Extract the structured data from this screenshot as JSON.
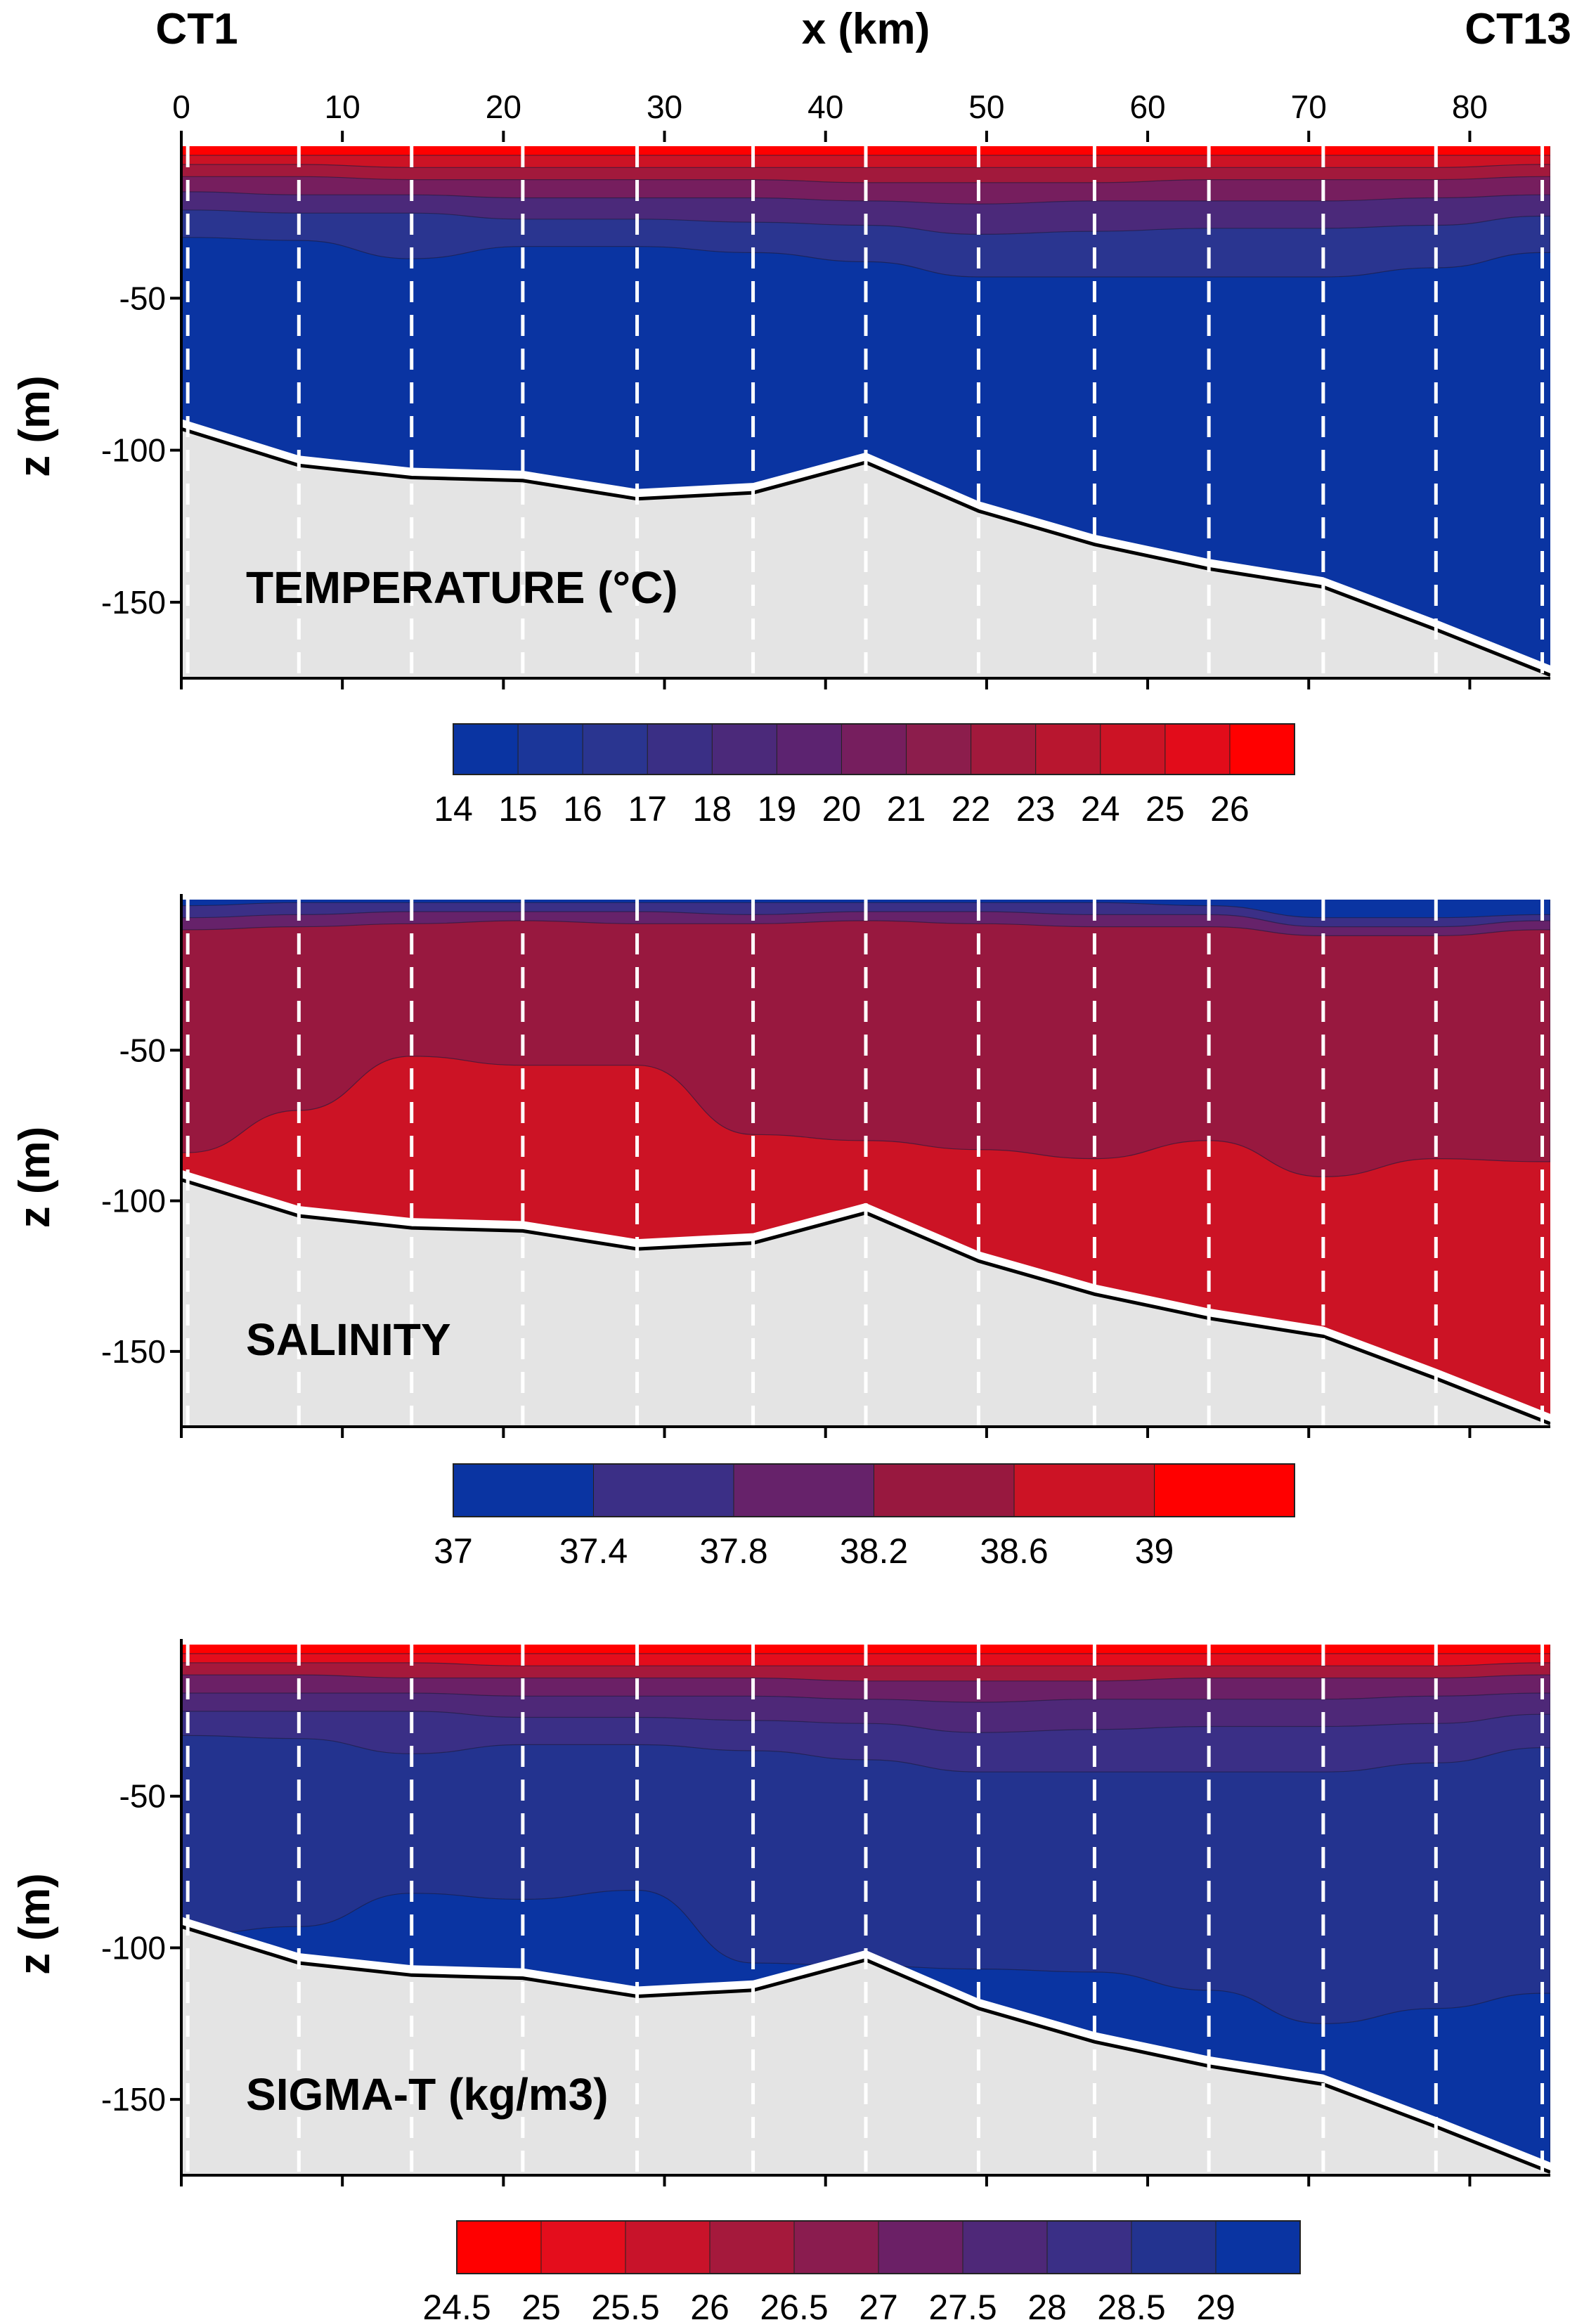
{
  "header": {
    "left_station": "CT1",
    "right_station": "CT13",
    "x_axis_label": "x (km)"
  },
  "colors": {
    "seabed": "#e4e4e4",
    "station_line": "#ffffff",
    "bottom_line": "#000000"
  },
  "chart_data": [
    {
      "type": "heatmap",
      "title": "TEMPERATURE (°C)",
      "xlabel": "x (km)",
      "ylabel": "z (m)",
      "xlim": [
        0,
        85
      ],
      "ylim": [
        -175,
        0
      ],
      "x_ticks": [
        "0",
        "10",
        "20",
        "30",
        "40",
        "50",
        "60",
        "70",
        "80"
      ],
      "y_ticks": [
        "-50",
        "-100",
        "-150"
      ],
      "station_x_km": [
        0.4,
        7.3,
        14.3,
        21.2,
        28.3,
        35.5,
        42.5,
        49.5,
        56.7,
        63.8,
        70.9,
        77.9,
        84.5
      ],
      "seabed_depth": [
        {
          "x": 0,
          "z": -93
        },
        {
          "x": 7.3,
          "z": -105
        },
        {
          "x": 14.3,
          "z": -109
        },
        {
          "x": 21.2,
          "z": -110
        },
        {
          "x": 28.3,
          "z": -116
        },
        {
          "x": 35.5,
          "z": -114
        },
        {
          "x": 42.5,
          "z": -104
        },
        {
          "x": 49.5,
          "z": -120
        },
        {
          "x": 56.7,
          "z": -131
        },
        {
          "x": 63.8,
          "z": -139
        },
        {
          "x": 70.9,
          "z": -145
        },
        {
          "x": 77.9,
          "z": -159
        },
        {
          "x": 85,
          "z": -174
        }
      ],
      "colorbar": {
        "labels": [
          "14",
          "15",
          "16",
          "17",
          "18",
          "19",
          "20",
          "21",
          "22",
          "23",
          "24",
          "25",
          "26"
        ],
        "colors": [
          "#0a34a2",
          "#1b3699",
          "#2a3590",
          "#3a2f85",
          "#4b297a",
          "#5c2370",
          "#761e5e",
          "#8c1d4c",
          "#a2193c",
          "#b8162f",
          "#cc1325",
          "#e20c1a",
          "#ff0000"
        ]
      },
      "background_color": "#0a34a2",
      "layers": [
        {
          "color": "#2a3590",
          "depth": [
            -30,
            -31,
            -37,
            -33,
            -33,
            -35,
            -38,
            -43,
            -43,
            -43,
            -43,
            -40,
            -35
          ]
        },
        {
          "color": "#4b297a",
          "depth": [
            -21,
            -22,
            -22,
            -24,
            -24,
            -25,
            -26,
            -29,
            -28,
            -27,
            -27,
            -26,
            -23
          ]
        },
        {
          "color": "#761e5e",
          "depth": [
            -15,
            -16,
            -16,
            -17,
            -17,
            -17,
            -18,
            -19,
            -18,
            -18,
            -18,
            -17,
            -16
          ]
        },
        {
          "color": "#a2193c",
          "depth": [
            -10,
            -10,
            -11,
            -11,
            -11,
            -11,
            -12,
            -12,
            -12,
            -11,
            -11,
            -11,
            -10
          ]
        },
        {
          "color": "#cc1325",
          "depth": [
            -6,
            -6,
            -7,
            -7,
            -7,
            -7,
            -7,
            -7,
            -7,
            -7,
            -7,
            -7,
            -6
          ]
        },
        {
          "color": "#ff0000",
          "depth": [
            -3,
            -3,
            -3,
            -3,
            -3,
            -3,
            -3,
            -3,
            -3,
            -3,
            -3,
            -3,
            -3
          ]
        }
      ]
    },
    {
      "type": "heatmap",
      "title": "SALINITY",
      "xlabel": "x (km)",
      "ylabel": "z (m)",
      "xlim": [
        0,
        85
      ],
      "ylim": [
        -175,
        0
      ],
      "x_ticks": [
        "0",
        "10",
        "20",
        "30",
        "40",
        "50",
        "60",
        "70",
        "80"
      ],
      "y_ticks": [
        "-50",
        "-100",
        "-150"
      ],
      "station_x_km": [
        0.4,
        7.3,
        14.3,
        21.2,
        28.3,
        35.5,
        42.5,
        49.5,
        56.7,
        63.8,
        70.9,
        77.9,
        84.5
      ],
      "seabed_depth": [
        {
          "x": 0,
          "z": -93
        },
        {
          "x": 7.3,
          "z": -105
        },
        {
          "x": 14.3,
          "z": -109
        },
        {
          "x": 21.2,
          "z": -110
        },
        {
          "x": 28.3,
          "z": -116
        },
        {
          "x": 35.5,
          "z": -114
        },
        {
          "x": 42.5,
          "z": -104
        },
        {
          "x": 49.5,
          "z": -120
        },
        {
          "x": 56.7,
          "z": -131
        },
        {
          "x": 63.8,
          "z": -139
        },
        {
          "x": 70.9,
          "z": -145
        },
        {
          "x": 77.9,
          "z": -159
        },
        {
          "x": 85,
          "z": -174
        }
      ],
      "colorbar": {
        "labels": [
          "37",
          "37.4",
          "37.8",
          "38.2",
          "38.6",
          "39"
        ],
        "colors": [
          "#0a34a2",
          "#3b2f86",
          "#66226a",
          "#98183f",
          "#cc1325",
          "#ff0000"
        ]
      },
      "background_color": "#cc1325",
      "layers": [
        {
          "color": "#98183f",
          "depth": [
            -84,
            -70,
            -52,
            -55,
            -55,
            -78,
            -80,
            -83,
            -86,
            -80,
            -92,
            -86,
            -87
          ]
        },
        {
          "color": "#66226a",
          "depth": [
            -10,
            -9,
            -8,
            -7,
            -8,
            -8,
            -7,
            -8,
            -9,
            -9,
            -12,
            -12,
            -10
          ]
        },
        {
          "color": "#3b2f86",
          "depth": [
            -6,
            -5,
            -4,
            -4,
            -4,
            -5,
            -4,
            -4,
            -5,
            -5,
            -9,
            -9,
            -7
          ]
        },
        {
          "color": "#0a34a2",
          "depth": [
            -2,
            -1,
            -1,
            -1,
            -1,
            -1,
            -1,
            -1,
            -1,
            -2,
            -6,
            -6,
            -5
          ]
        }
      ]
    },
    {
      "type": "heatmap",
      "title": "SIGMA-T (kg/m3)",
      "xlabel": "x (km)",
      "ylabel": "z (m)",
      "xlim": [
        0,
        85
      ],
      "ylim": [
        -175,
        0
      ],
      "x_ticks": [
        "0",
        "10",
        "20",
        "30",
        "40",
        "50",
        "60",
        "70",
        "80"
      ],
      "y_ticks": [
        "-50",
        "-100",
        "-150"
      ],
      "station_x_km": [
        0.4,
        7.3,
        14.3,
        21.2,
        28.3,
        35.5,
        42.5,
        49.5,
        56.7,
        63.8,
        70.9,
        77.9,
        84.5
      ],
      "seabed_depth": [
        {
          "x": 0,
          "z": -93
        },
        {
          "x": 7.3,
          "z": -105
        },
        {
          "x": 14.3,
          "z": -109
        },
        {
          "x": 21.2,
          "z": -110
        },
        {
          "x": 28.3,
          "z": -116
        },
        {
          "x": 35.5,
          "z": -114
        },
        {
          "x": 42.5,
          "z": -104
        },
        {
          "x": 49.5,
          "z": -120
        },
        {
          "x": 56.7,
          "z": -131
        },
        {
          "x": 63.8,
          "z": -139
        },
        {
          "x": 70.9,
          "z": -145
        },
        {
          "x": 77.9,
          "z": -159
        },
        {
          "x": 85,
          "z": -174
        }
      ],
      "colorbar": {
        "labels": [
          "24.5",
          "25",
          "25.5",
          "26",
          "26.5",
          "27",
          "27.5",
          "28",
          "28.5",
          "29"
        ],
        "colors": [
          "#ff0000",
          "#e40d1c",
          "#c8132a",
          "#a5193c",
          "#8a1c4f",
          "#6b2066",
          "#4e2878",
          "#3a2f86",
          "#23338f",
          "#0a34a2"
        ]
      },
      "background_color": "#23338f",
      "layers": [
        {
          "color": "#0a34a2",
          "depth": [
            -200,
            -200,
            -200,
            -200,
            -200,
            -200,
            -200,
            -200,
            -200,
            -200,
            -200,
            -200,
            -200
          ]
        },
        {
          "color": "#23338f",
          "depth": [
            -200,
            -93,
            -82,
            -84,
            -81,
            -105,
            -200,
            -107,
            -108,
            -114,
            -125,
            -120,
            -115
          ]
        },
        {
          "color": "#3a2f86",
          "depth": [
            -30,
            -31,
            -36,
            -33,
            -33,
            -35,
            -38,
            -42,
            -42,
            -42,
            -42,
            -39,
            -34
          ]
        },
        {
          "color": "#4e2878",
          "depth": [
            -22,
            -22,
            -22,
            -24,
            -24,
            -25,
            -26,
            -29,
            -28,
            -27,
            -27,
            -26,
            -23
          ]
        },
        {
          "color": "#6b2066",
          "depth": [
            -16,
            -16,
            -16,
            -17,
            -17,
            -17,
            -18,
            -19,
            -18,
            -18,
            -18,
            -17,
            -16
          ]
        },
        {
          "color": "#a5193c",
          "depth": [
            -10,
            -10,
            -11,
            -11,
            -11,
            -11,
            -12,
            -12,
            -12,
            -11,
            -11,
            -11,
            -10
          ]
        },
        {
          "color": "#e40d1c",
          "depth": [
            -6,
            -6,
            -6,
            -7,
            -7,
            -7,
            -7,
            -7,
            -7,
            -7,
            -7,
            -7,
            -6
          ]
        },
        {
          "color": "#ff0000",
          "depth": [
            -3,
            -3,
            -3,
            -3,
            -3,
            -3,
            -3,
            -3,
            -3,
            -3,
            -3,
            -3,
            -3
          ]
        }
      ]
    }
  ]
}
